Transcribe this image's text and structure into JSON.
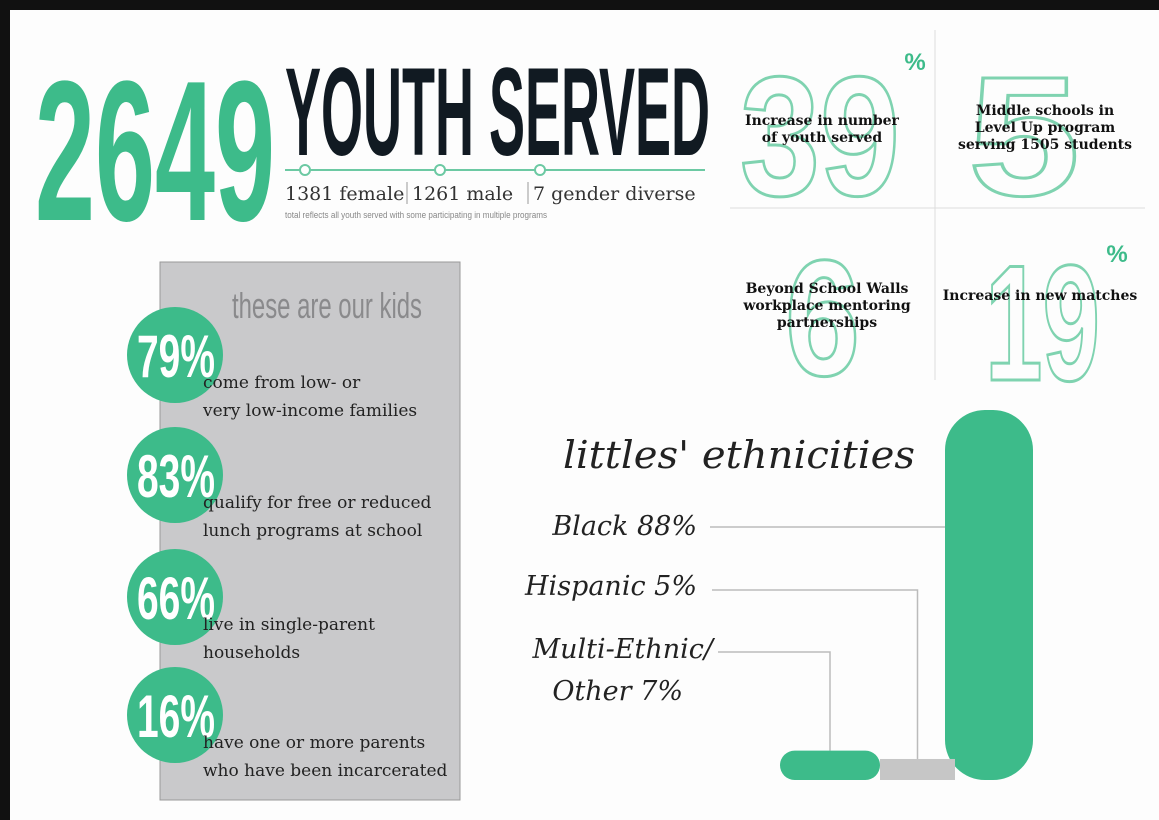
{
  "header": {
    "total": 2649,
    "title": "YOUTH SERVED",
    "breakdown": [
      "1381 female",
      "1261 male",
      "7 gender diverse"
    ],
    "note": "total reflects all youth served with some participating in multiple programs"
  },
  "stats": [
    {
      "number": 39,
      "suffix": "%",
      "lines": [
        "Increase in number",
        "of youth served"
      ]
    },
    {
      "number": 5,
      "lines": [
        "Middle schools in",
        "Level Up program",
        "serving 1505 students"
      ]
    },
    {
      "number": 6,
      "lines": [
        "Beyond School Walls",
        "workplace mentoring",
        "partnerships"
      ]
    },
    {
      "number": 19,
      "suffix": "%",
      "lines": [
        "Increase in new matches"
      ]
    }
  ],
  "kids": {
    "title": "these are our kids",
    "items": [
      {
        "stat": "79%",
        "lines": [
          "come from low- or",
          "very low-income families"
        ]
      },
      {
        "stat": "83%",
        "lines": [
          "qualify for free or reduced",
          "lunch programs at school"
        ]
      },
      {
        "stat": "66%",
        "lines": [
          "live in single-parent",
          "households"
        ]
      },
      {
        "stat": "16%",
        "lines": [
          "have one or more parents",
          "who have been incarcerated"
        ]
      }
    ]
  },
  "ethnicities": {
    "title": "littles' ethnicities",
    "labels": [
      [
        "Black 88%"
      ],
      [
        "Hispanic 5%"
      ],
      [
        "Multi-Ethnic/",
        "Other 7%"
      ]
    ],
    "values": [
      88,
      5,
      7
    ]
  }
}
